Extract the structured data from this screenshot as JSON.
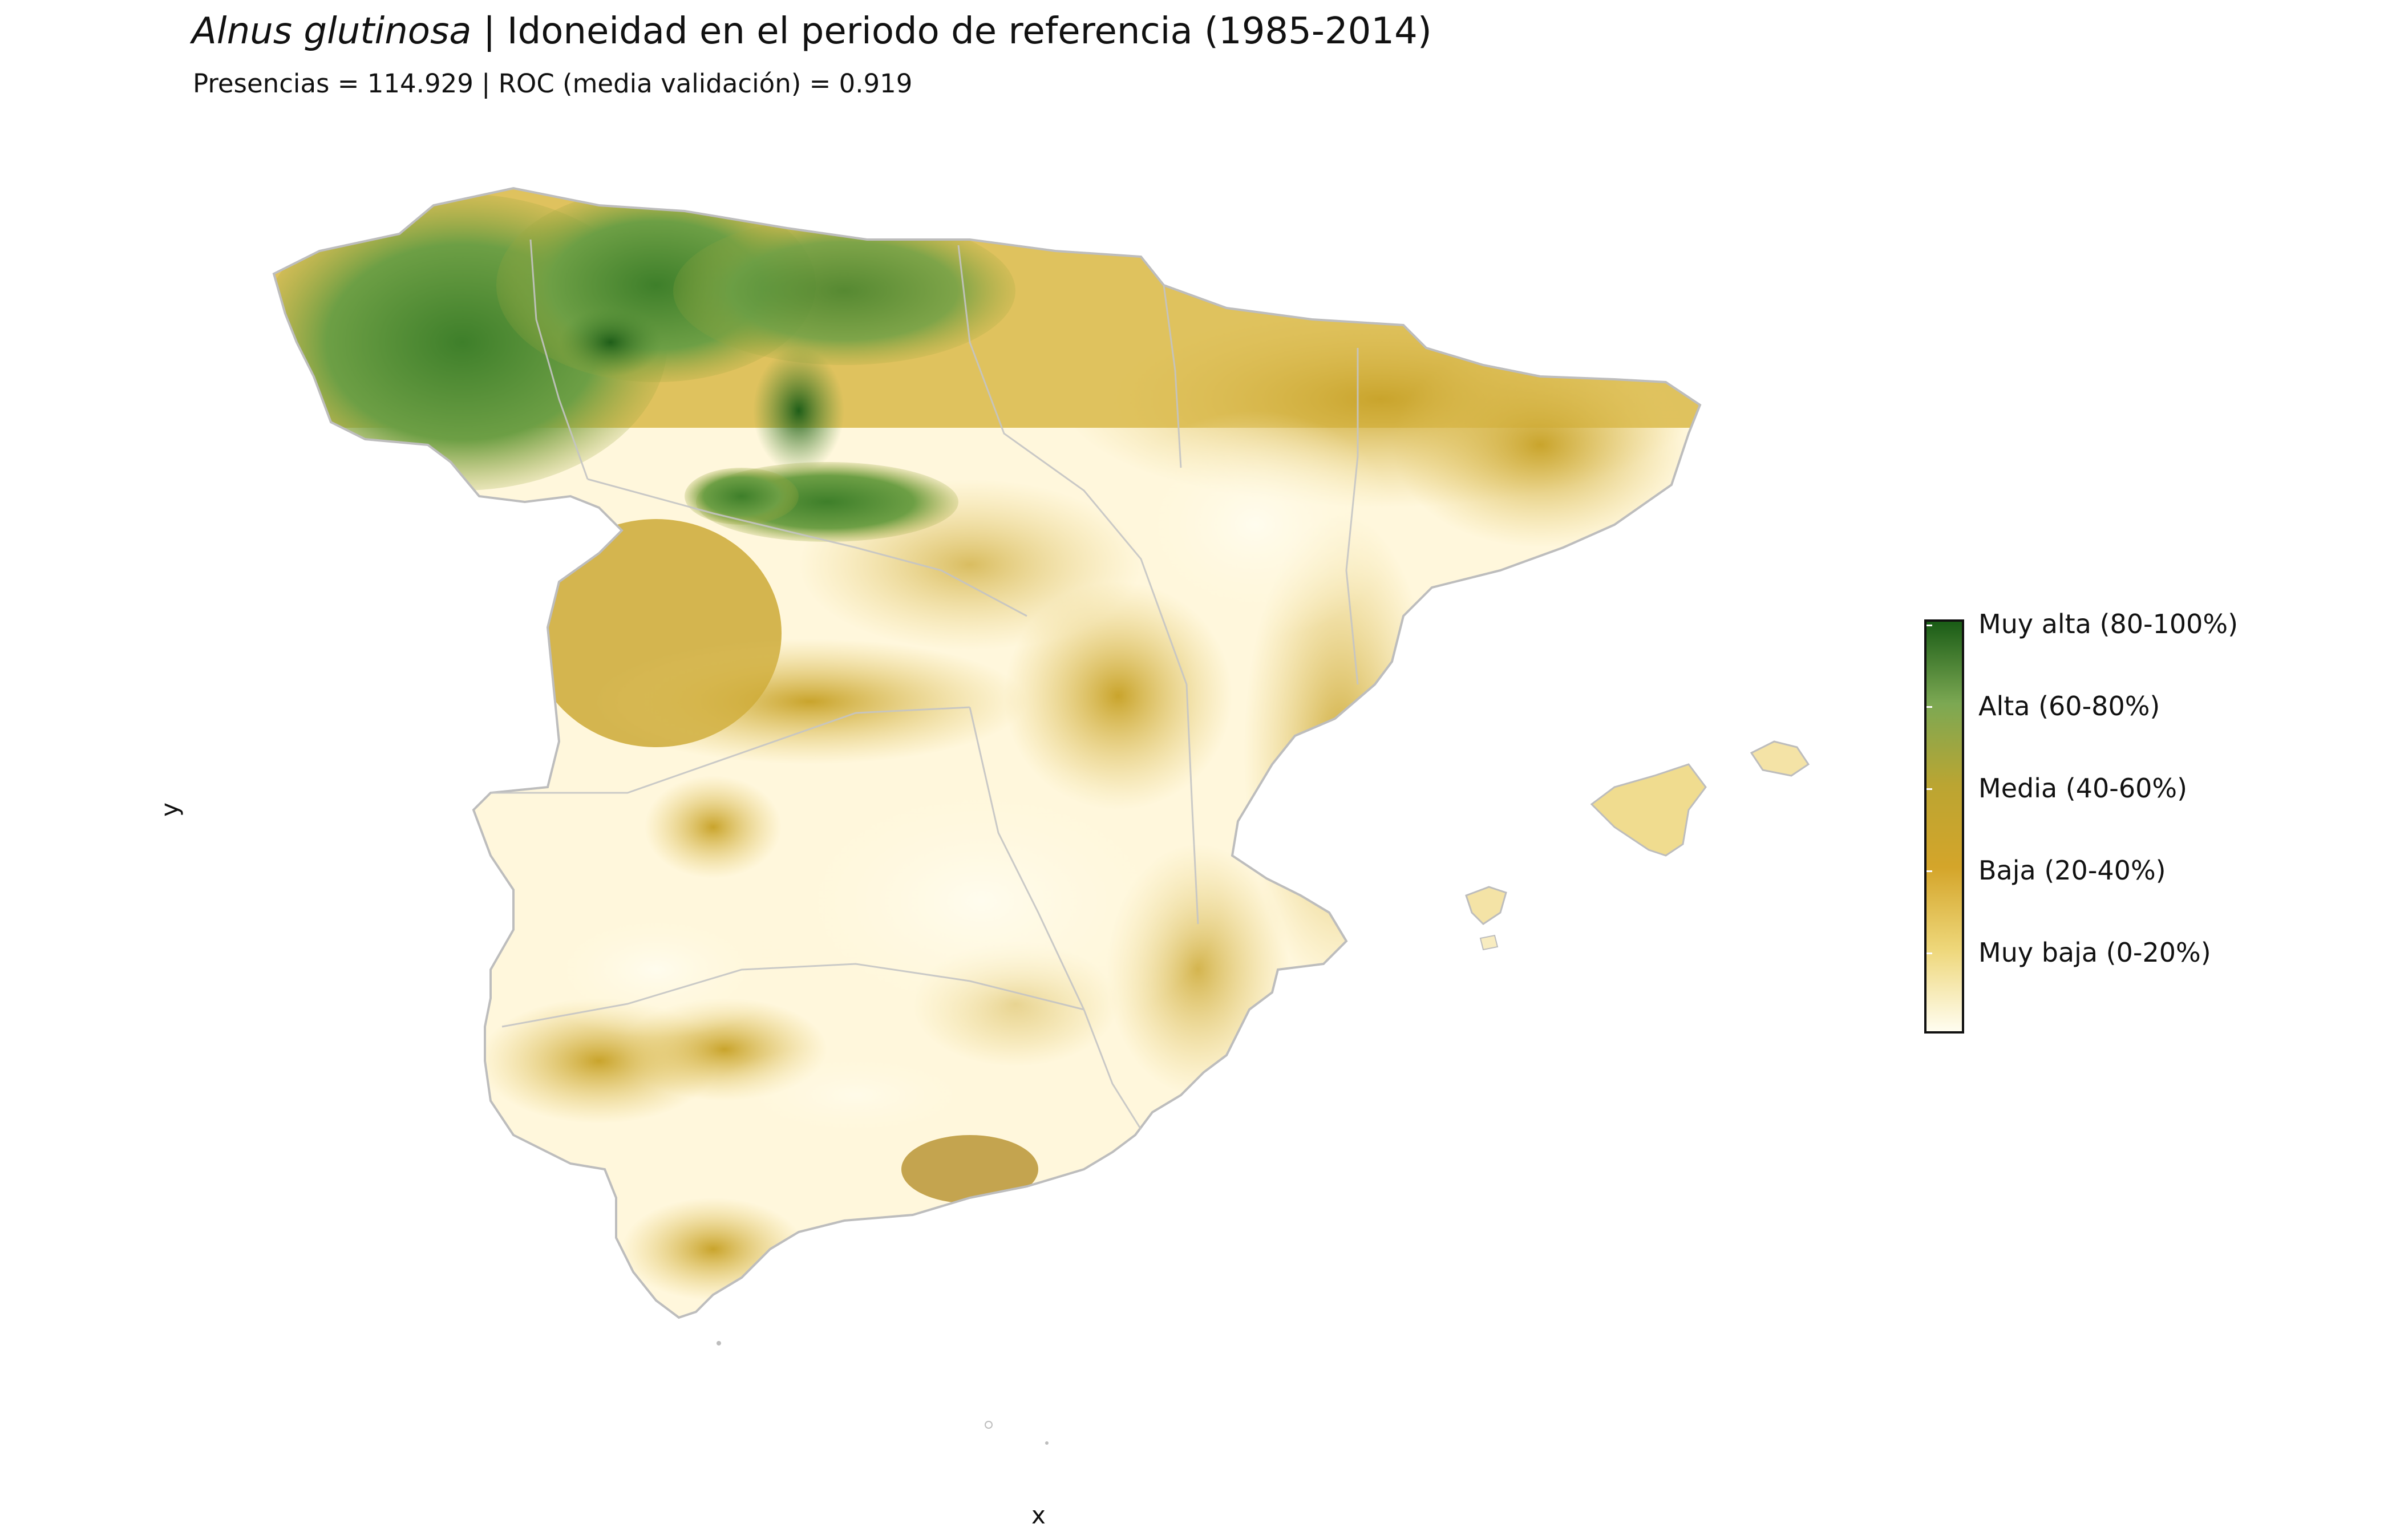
{
  "title": {
    "species": "Alnus glutinosa",
    "rest": " | Idoneidad en el periodo de referencia (1985-2014)"
  },
  "subtitle": "Presencias = 114.929  |  ROC (media validación) = 0.919",
  "axes": {
    "x_label": "x",
    "y_label": "y"
  },
  "legend": {
    "categories": [
      {
        "label": "Muy alta (80-100%)",
        "color": "#1a5c16"
      },
      {
        "label": "Alta (60-80%)",
        "color": "#7ca853"
      },
      {
        "label": "Media (40-60%)",
        "color": "#bba532"
      },
      {
        "label": "Baja (20-40%)",
        "color": "#d4a52a"
      },
      {
        "label": "Muy baja (0-20%)",
        "color": "#eed77a"
      }
    ]
  },
  "colors": {
    "border": "#bdbdbd",
    "background": "#ffffff"
  }
}
